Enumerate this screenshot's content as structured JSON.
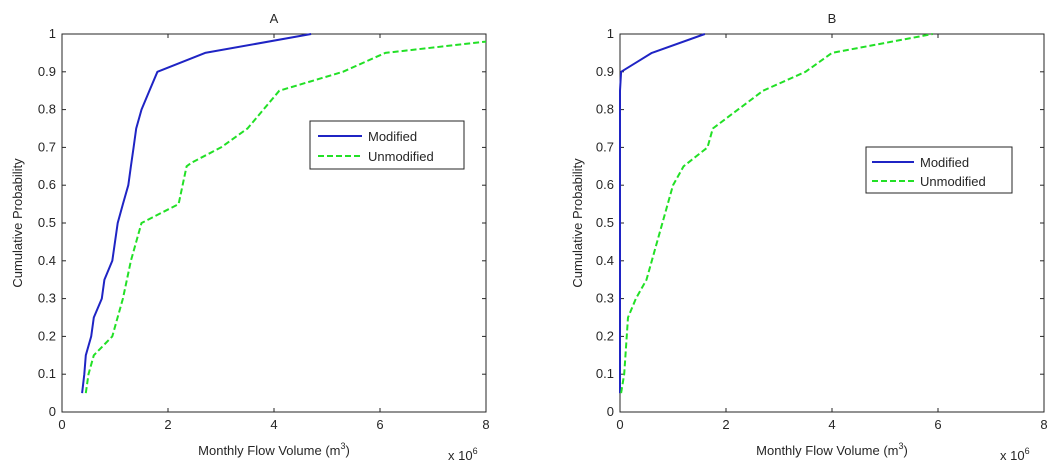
{
  "chart_data": [
    {
      "type": "line",
      "title": "A",
      "xlabel": "Monthly Flow Volume (m",
      "xlabel_sup": "3",
      "xlabel_end": ")",
      "ylabel": "Cumulative Probability",
      "x_multiplier_label": "x 10",
      "x_multiplier_exp": "6",
      "xlim": [
        0,
        8
      ],
      "ylim": [
        0,
        1
      ],
      "x_ticks": [
        "0",
        "2",
        "4",
        "6",
        "8"
      ],
      "x_tick_values": [
        0,
        2,
        4,
        6,
        8
      ],
      "y_ticks": [
        "0",
        "0.1",
        "0.2",
        "0.3",
        "0.4",
        "0.5",
        "0.6",
        "0.7",
        "0.8",
        "0.9",
        "1"
      ],
      "y_tick_values": [
        0,
        0.1,
        0.2,
        0.3,
        0.4,
        0.5,
        0.6,
        0.7,
        0.8,
        0.9,
        1
      ],
      "grid": false,
      "legend_position": "right",
      "series": [
        {
          "name": "Modified",
          "color": "#1f24c4",
          "style": "solid",
          "x": [
            0.38,
            0.42,
            0.45,
            0.55,
            0.6,
            0.75,
            0.8,
            0.95,
            1.05,
            1.15,
            1.25,
            1.3,
            1.35,
            1.4,
            1.5,
            1.65,
            1.8,
            2.7,
            4.7
          ],
          "y": [
            0.05,
            0.1,
            0.15,
            0.2,
            0.25,
            0.3,
            0.35,
            0.4,
            0.5,
            0.55,
            0.6,
            0.65,
            0.7,
            0.75,
            0.8,
            0.85,
            0.9,
            0.95,
            1.0
          ]
        },
        {
          "name": "Unmodified",
          "color": "#22e026",
          "style": "dashed",
          "x": [
            0.45,
            0.5,
            0.6,
            0.95,
            1.15,
            1.3,
            1.4,
            1.5,
            2.2,
            2.35,
            2.45,
            3.0,
            3.5,
            4.1,
            5.3,
            6.1,
            8.0
          ],
          "y": [
            0.05,
            0.1,
            0.15,
            0.2,
            0.3,
            0.4,
            0.45,
            0.5,
            0.55,
            0.65,
            0.66,
            0.7,
            0.75,
            0.85,
            0.9,
            0.95,
            0.98
          ]
        }
      ]
    },
    {
      "type": "line",
      "title": "B",
      "xlabel": "Monthly Flow Volume (m",
      "xlabel_sup": "3",
      "xlabel_end": ")",
      "ylabel": "Cumulative Probability",
      "x_multiplier_label": "x 10",
      "x_multiplier_exp": "6",
      "xlim": [
        0,
        8
      ],
      "ylim": [
        0,
        1
      ],
      "x_ticks": [
        "0",
        "2",
        "4",
        "6",
        "8"
      ],
      "x_tick_values": [
        0,
        2,
        4,
        6,
        8
      ],
      "y_ticks": [
        "0",
        "0.1",
        "0.2",
        "0.3",
        "0.4",
        "0.5",
        "0.6",
        "0.7",
        "0.8",
        "0.9",
        "1"
      ],
      "y_tick_values": [
        0,
        0.1,
        0.2,
        0.3,
        0.4,
        0.5,
        0.6,
        0.7,
        0.8,
        0.9,
        1
      ],
      "grid": false,
      "legend_position": "right",
      "series": [
        {
          "name": "Modified",
          "color": "#1f24c4",
          "style": "solid",
          "x": [
            0.0,
            0.0,
            0.02,
            0.6,
            1.6
          ],
          "y": [
            0.05,
            0.85,
            0.9,
            0.95,
            1.0
          ]
        },
        {
          "name": "Unmodified",
          "color": "#22e026",
          "style": "dashed",
          "x": [
            0.02,
            0.08,
            0.15,
            0.3,
            0.5,
            0.6,
            0.8,
            1.0,
            1.2,
            1.65,
            1.75,
            2.7,
            3.5,
            4.0,
            5.9
          ],
          "y": [
            0.05,
            0.1,
            0.25,
            0.3,
            0.35,
            0.4,
            0.5,
            0.6,
            0.65,
            0.7,
            0.75,
            0.85,
            0.9,
            0.95,
            1.0
          ]
        }
      ]
    }
  ]
}
